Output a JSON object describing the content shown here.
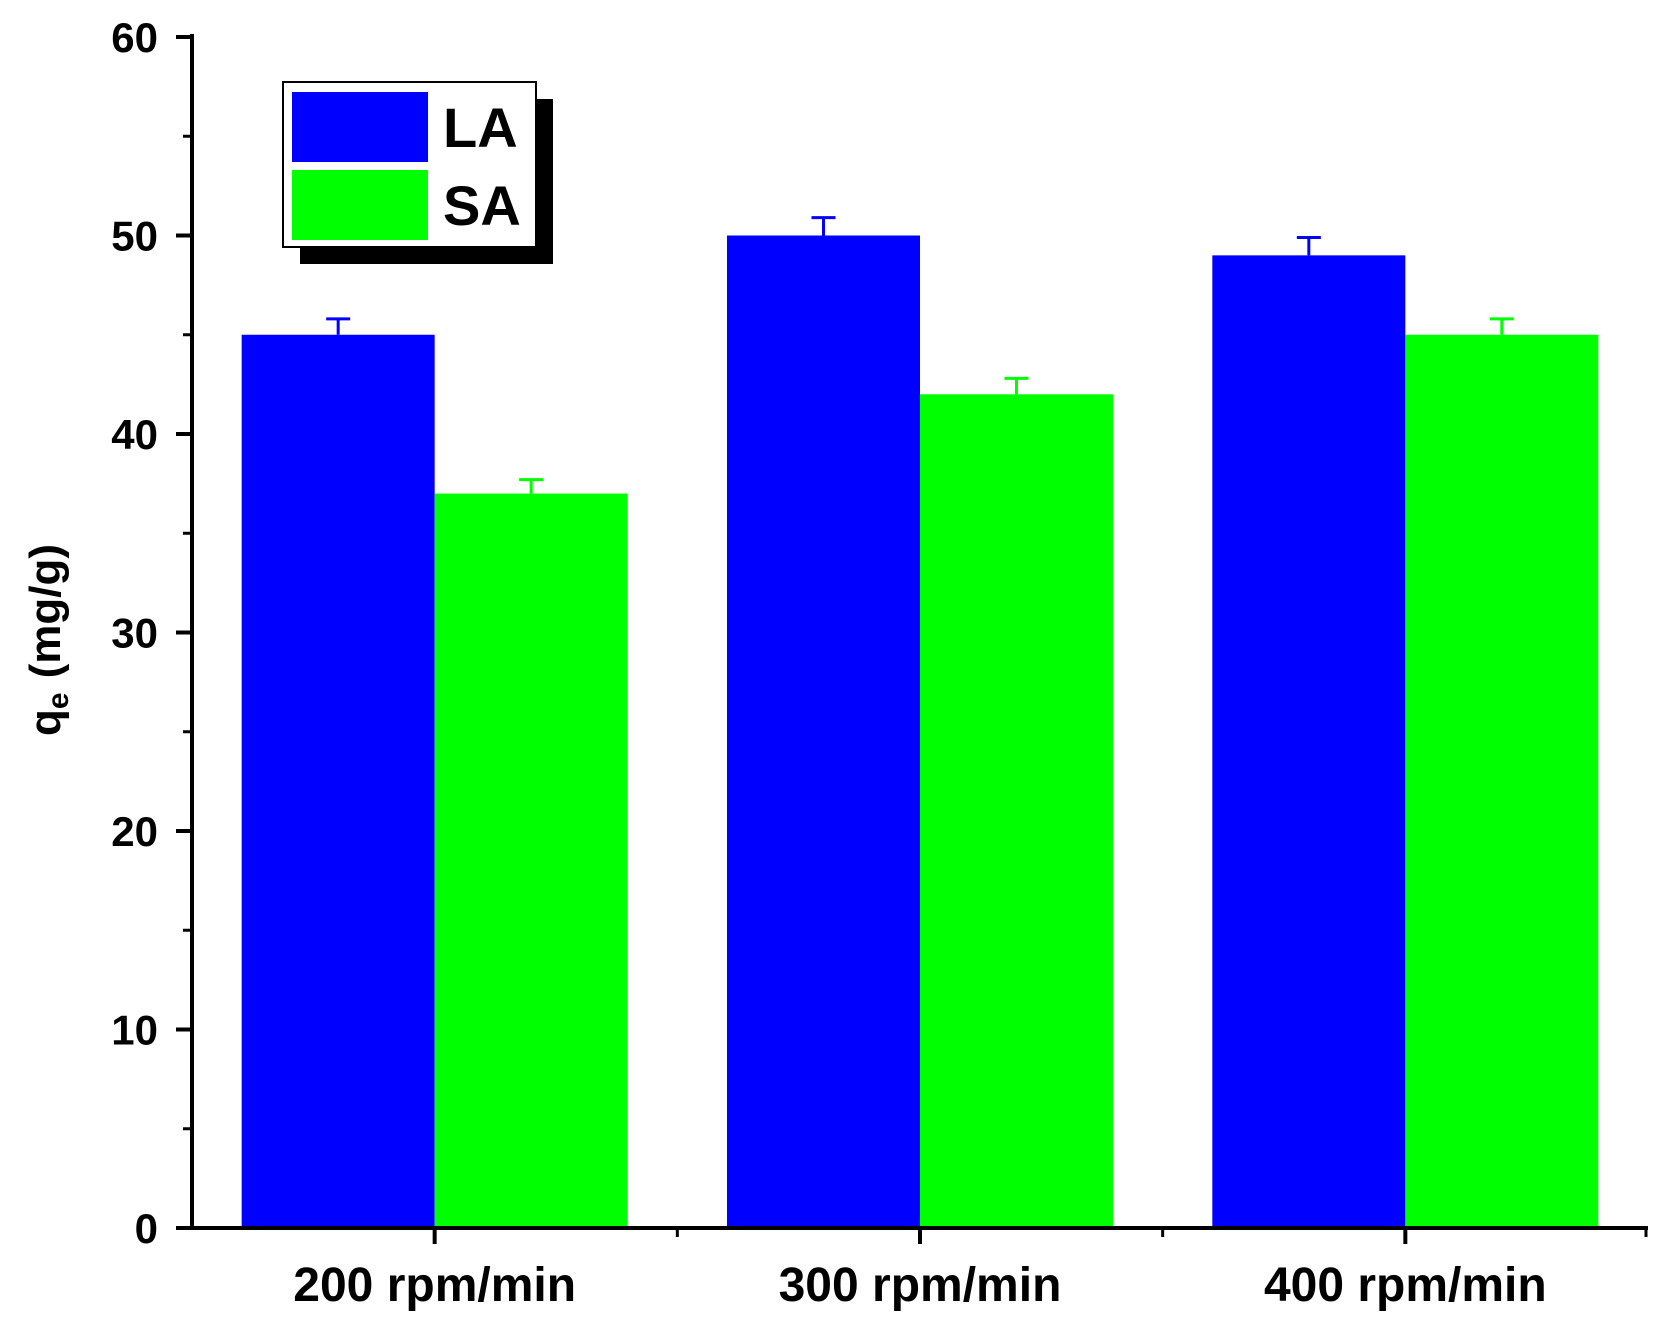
{
  "chart_data": {
    "type": "bar",
    "title": "",
    "xlabel": "",
    "ylabel": "q",
    "ylabel_sub": "e",
    "ylabel_unit": "(mg/g)",
    "categories": [
      "200 rpm/min",
      "300 rpm/min",
      "400 rpm/min"
    ],
    "ylim": [
      0,
      60
    ],
    "yticks": [
      "0",
      "10",
      "20",
      "30",
      "40",
      "50",
      "60"
    ],
    "ytick_values": [
      0,
      10,
      20,
      30,
      40,
      50,
      60
    ],
    "legend_position": "top-left",
    "series": [
      {
        "name": "LA",
        "color": "#0000ff",
        "values": [
          45,
          50,
          49
        ],
        "errors": [
          0.8,
          0.9,
          0.9
        ]
      },
      {
        "name": "SA",
        "color": "#00ff00",
        "values": [
          37,
          42,
          45
        ],
        "errors": [
          0.7,
          0.8,
          0.8
        ]
      }
    ]
  }
}
